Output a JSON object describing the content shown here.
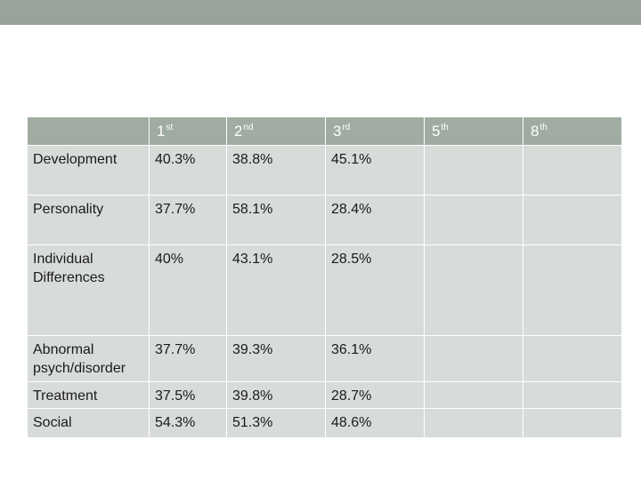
{
  "table": {
    "headers": [
      {
        "num": "",
        "suffix": ""
      },
      {
        "num": "1",
        "suffix": "st"
      },
      {
        "num": "2",
        "suffix": "nd"
      },
      {
        "num": "3",
        "suffix": "rd"
      },
      {
        "num": "5",
        "suffix": "th"
      },
      {
        "num": "8",
        "suffix": "th"
      }
    ],
    "rows": [
      {
        "label": "Development",
        "values": [
          "40.3%",
          "38.8%",
          "45.1%",
          "",
          ""
        ]
      },
      {
        "label": "Personality",
        "values": [
          "37.7%",
          "58.1%",
          "28.4%",
          "",
          ""
        ]
      },
      {
        "label": "Individual Differences",
        "values": [
          "40%",
          "43.1%",
          "28.5%",
          "",
          ""
        ]
      },
      {
        "label": "Abnormal psych/disorder",
        "values": [
          "37.7%",
          "39.3%",
          "36.1%",
          "",
          ""
        ]
      },
      {
        "label": "Treatment",
        "values": [
          "37.5%",
          "39.8%",
          "28.7%",
          "",
          ""
        ]
      },
      {
        "label": "Social",
        "values": [
          "54.3%",
          "51.3%",
          "48.6%",
          "",
          ""
        ]
      }
    ]
  }
}
